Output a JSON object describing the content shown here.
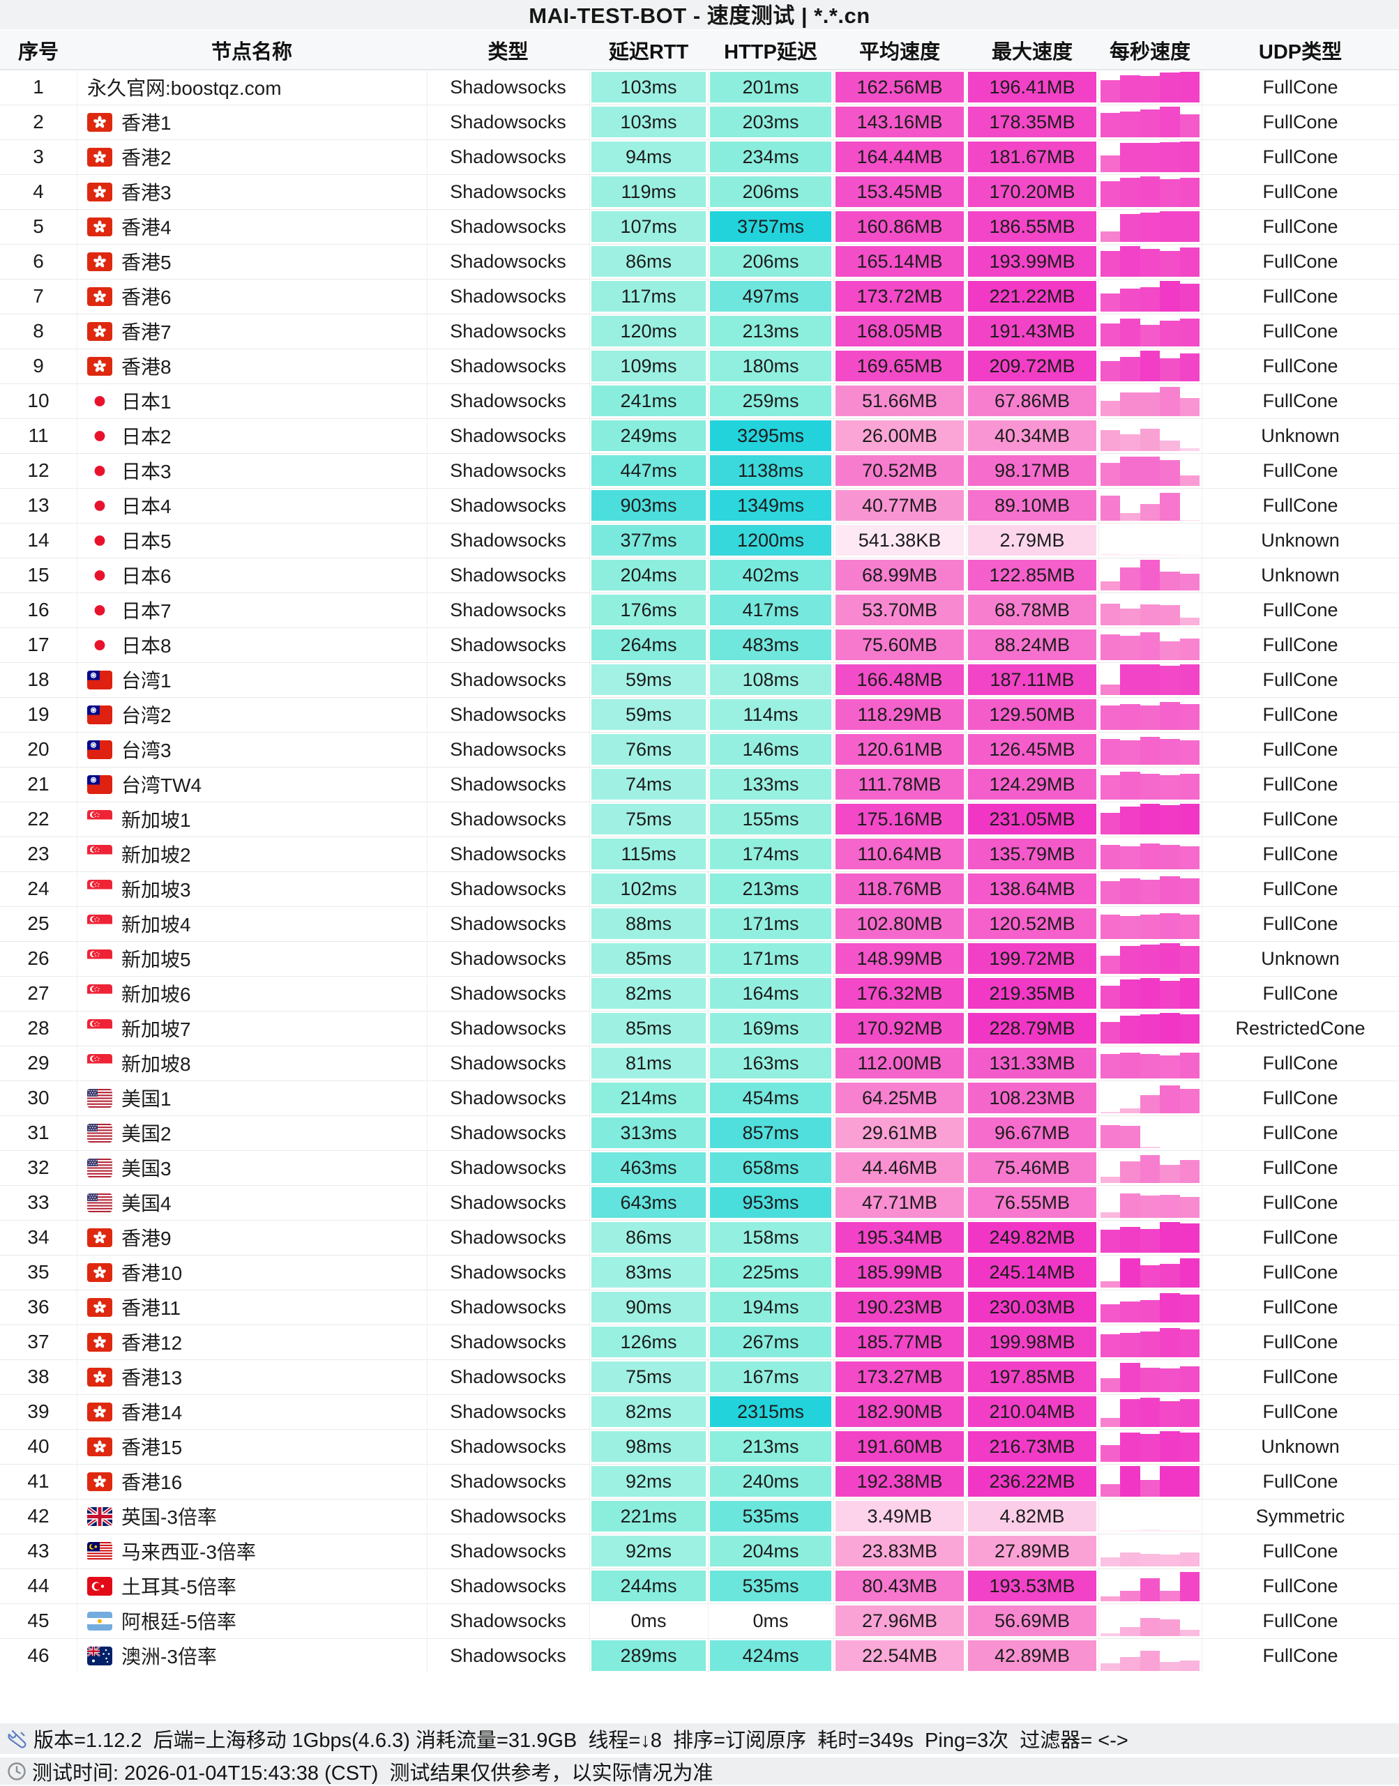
{
  "title": "MAI-TEST-BOT - 速度测试 | *.*.cn",
  "columns": [
    "序号",
    "节点名称",
    "类型",
    "延迟RTT",
    "HTTP延迟",
    "平均速度",
    "最大速度",
    "每秒速度",
    "UDP类型"
  ],
  "palette": {
    "title_bg": "#F1F2F3",
    "header_bg": "#F7F8F9",
    "footer_bg": "#EDEFF0",
    "row_border": "#E9E9E9",
    "teal_mid": "#8CEEDD",
    "teal_high": "#22D3DC",
    "pink_mid": "#FA9ED3",
    "pink_high": "#F136C5",
    "text": "#161616"
  },
  "footer": {
    "tools_icon": "wrench-icon",
    "clock_icon": "clock-icon",
    "line1": "版本=1.12.2  后端=上海移动 1Gbps(4.6.3) 消耗流量=31.9GB  线程=↓8  排序=订阅原序  耗时=349s  Ping=3次  过滤器= <->",
    "line2": "测试时间: 2026-01-04T15:43:38 (CST)  测试结果仅供参考，以实际情况为准"
  },
  "rows": [
    {
      "n": 1,
      "flag": "none",
      "name": "永久官网:boostqz.com",
      "type": "Shadowsocks",
      "rtt": "103ms",
      "http": "201ms",
      "avg": "162.56MB",
      "max": "196.41MB",
      "avg_mb": 162.56,
      "max_mb": 196.41,
      "udp": "FullCone",
      "bars": [
        0.72,
        0.88,
        0.86,
        0.97,
        1
      ]
    },
    {
      "n": 2,
      "flag": "hk",
      "name": "香港1",
      "type": "Shadowsocks",
      "rtt": "103ms",
      "http": "203ms",
      "avg": "143.16MB",
      "max": "178.35MB",
      "avg_mb": 143.16,
      "max_mb": 178.35,
      "udp": "FullCone",
      "bars": [
        0.8,
        0.85,
        0.9,
        1,
        0.75
      ]
    },
    {
      "n": 3,
      "flag": "hk",
      "name": "香港2",
      "type": "Shadowsocks",
      "rtt": "94ms",
      "http": "234ms",
      "avg": "164.44MB",
      "max": "181.67MB",
      "avg_mb": 164.44,
      "max_mb": 181.67,
      "udp": "FullCone",
      "bars": [
        0.55,
        0.95,
        0.95,
        0.98,
        1
      ]
    },
    {
      "n": 4,
      "flag": "hk",
      "name": "香港3",
      "type": "Shadowsocks",
      "rtt": "119ms",
      "http": "206ms",
      "avg": "153.45MB",
      "max": "170.20MB",
      "avg_mb": 153.45,
      "max_mb": 170.2,
      "udp": "FullCone",
      "bars": [
        0.85,
        0.95,
        1,
        0.9,
        0.95
      ]
    },
    {
      "n": 5,
      "flag": "hk",
      "name": "香港4",
      "type": "Shadowsocks",
      "rtt": "107ms",
      "http": "3757ms",
      "avg": "160.86MB",
      "max": "186.55MB",
      "avg_mb": 160.86,
      "max_mb": 186.55,
      "udp": "FullCone",
      "bars": [
        0.35,
        0.9,
        0.95,
        1,
        1
      ]
    },
    {
      "n": 6,
      "flag": "hk",
      "name": "香港5",
      "type": "Shadowsocks",
      "rtt": "86ms",
      "http": "206ms",
      "avg": "165.14MB",
      "max": "193.99MB",
      "avg_mb": 165.14,
      "max_mb": 193.99,
      "udp": "FullCone",
      "bars": [
        0.85,
        1,
        0.9,
        0.85,
        0.95
      ]
    },
    {
      "n": 7,
      "flag": "hk",
      "name": "香港6",
      "type": "Shadowsocks",
      "rtt": "117ms",
      "http": "497ms",
      "avg": "173.72MB",
      "max": "221.22MB",
      "avg_mb": 173.72,
      "max_mb": 221.22,
      "udp": "FullCone",
      "bars": [
        0.6,
        0.75,
        0.8,
        1,
        0.9
      ]
    },
    {
      "n": 8,
      "flag": "hk",
      "name": "香港7",
      "type": "Shadowsocks",
      "rtt": "120ms",
      "http": "213ms",
      "avg": "168.05MB",
      "max": "191.43MB",
      "avg_mb": 168.05,
      "max_mb": 191.43,
      "udp": "FullCone",
      "bars": [
        0.75,
        0.9,
        0.7,
        0.85,
        0.9
      ]
    },
    {
      "n": 9,
      "flag": "hk",
      "name": "香港8",
      "type": "Shadowsocks",
      "rtt": "109ms",
      "http": "180ms",
      "avg": "169.65MB",
      "max": "209.72MB",
      "avg_mb": 169.65,
      "max_mb": 209.72,
      "udp": "FullCone",
      "bars": [
        0.65,
        0.8,
        1,
        0.75,
        0.9
      ]
    },
    {
      "n": 10,
      "flag": "jp",
      "name": "日本1",
      "type": "Shadowsocks",
      "rtt": "241ms",
      "http": "259ms",
      "avg": "51.66MB",
      "max": "67.86MB",
      "avg_mb": 51.66,
      "max_mb": 67.86,
      "udp": "FullCone",
      "bars": [
        0.5,
        0.78,
        0.78,
        0.95,
        0.6
      ]
    },
    {
      "n": 11,
      "flag": "jp",
      "name": "日本2",
      "type": "Shadowsocks",
      "rtt": "249ms",
      "http": "3295ms",
      "avg": "26.00MB",
      "max": "40.34MB",
      "avg_mb": 26,
      "max_mb": 40.34,
      "udp": "Unknown",
      "bars": [
        0.68,
        0.55,
        0.72,
        0.35,
        0.08
      ]
    },
    {
      "n": 12,
      "flag": "jp",
      "name": "日本3",
      "type": "Shadowsocks",
      "rtt": "447ms",
      "http": "1138ms",
      "avg": "70.52MB",
      "max": "98.17MB",
      "avg_mb": 70.52,
      "max_mb": 98.17,
      "udp": "FullCone",
      "bars": [
        0.75,
        0.95,
        0.95,
        0.85,
        0.35
      ]
    },
    {
      "n": 13,
      "flag": "jp",
      "name": "日本4",
      "type": "Shadowsocks",
      "rtt": "903ms",
      "http": "1349ms",
      "avg": "40.77MB",
      "max": "89.10MB",
      "avg_mb": 40.77,
      "max_mb": 89.1,
      "udp": "FullCone",
      "bars": [
        0.82,
        0.25,
        0.55,
        0.9,
        0.03
      ]
    },
    {
      "n": 14,
      "flag": "jp",
      "name": "日本5",
      "type": "Shadowsocks",
      "rtt": "377ms",
      "http": "1200ms",
      "avg": "541.38KB",
      "max": "2.79MB",
      "avg_mb": 0.53,
      "max_mb": 2.79,
      "udp": "Unknown",
      "bars": [
        0.06,
        0.04,
        0.05,
        0.04,
        0.02
      ]
    },
    {
      "n": 15,
      "flag": "jp",
      "name": "日本6",
      "type": "Shadowsocks",
      "rtt": "204ms",
      "http": "402ms",
      "avg": "68.99MB",
      "max": "122.85MB",
      "avg_mb": 68.99,
      "max_mb": 122.85,
      "udp": "Unknown",
      "bars": [
        0.3,
        0.75,
        1,
        0.62,
        0.55
      ]
    },
    {
      "n": 16,
      "flag": "jp",
      "name": "日本7",
      "type": "Shadowsocks",
      "rtt": "176ms",
      "http": "417ms",
      "avg": "53.70MB",
      "max": "68.78MB",
      "avg_mb": 53.7,
      "max_mb": 68.78,
      "udp": "FullCone",
      "bars": [
        0.7,
        0.55,
        0.68,
        0.65,
        0.25
      ]
    },
    {
      "n": 17,
      "flag": "jp",
      "name": "日本8",
      "type": "Shadowsocks",
      "rtt": "264ms",
      "http": "483ms",
      "avg": "75.60MB",
      "max": "88.24MB",
      "avg_mb": 75.6,
      "max_mb": 88.24,
      "udp": "FullCone",
      "bars": [
        0.85,
        0.8,
        0.9,
        0.62,
        0.7
      ]
    },
    {
      "n": 18,
      "flag": "tw",
      "name": "台湾1",
      "type": "Shadowsocks",
      "rtt": "59ms",
      "http": "108ms",
      "avg": "166.48MB",
      "max": "187.11MB",
      "avg_mb": 166.48,
      "max_mb": 187.11,
      "udp": "FullCone",
      "bars": [
        0.35,
        1,
        1,
        0.95,
        1
      ]
    },
    {
      "n": 19,
      "flag": "tw",
      "name": "台湾2",
      "type": "Shadowsocks",
      "rtt": "59ms",
      "http": "114ms",
      "avg": "118.29MB",
      "max": "129.50MB",
      "avg_mb": 118.29,
      "max_mb": 129.5,
      "udp": "FullCone",
      "bars": [
        0.8,
        0.85,
        0.8,
        0.9,
        0.85
      ]
    },
    {
      "n": 20,
      "flag": "tw",
      "name": "台湾3",
      "type": "Shadowsocks",
      "rtt": "76ms",
      "http": "146ms",
      "avg": "120.61MB",
      "max": "126.45MB",
      "avg_mb": 120.61,
      "max_mb": 126.45,
      "udp": "FullCone",
      "bars": [
        0.85,
        0.8,
        0.9,
        0.85,
        0.8
      ]
    },
    {
      "n": 21,
      "flag": "tw",
      "name": "台湾TW4",
      "type": "Shadowsocks",
      "rtt": "74ms",
      "http": "133ms",
      "avg": "111.78MB",
      "max": "124.29MB",
      "avg_mb": 111.78,
      "max_mb": 124.29,
      "udp": "FullCone",
      "bars": [
        0.8,
        0.9,
        0.85,
        0.8,
        0.85
      ]
    },
    {
      "n": 22,
      "flag": "sg",
      "name": "新加坡1",
      "type": "Shadowsocks",
      "rtt": "75ms",
      "http": "155ms",
      "avg": "175.16MB",
      "max": "231.05MB",
      "avg_mb": 175.16,
      "max_mb": 231.05,
      "udp": "FullCone",
      "bars": [
        0.7,
        0.9,
        1,
        0.95,
        1
      ]
    },
    {
      "n": 23,
      "flag": "sg",
      "name": "新加坡2",
      "type": "Shadowsocks",
      "rtt": "115ms",
      "http": "174ms",
      "avg": "110.64MB",
      "max": "135.79MB",
      "avg_mb": 110.64,
      "max_mb": 135.79,
      "udp": "FullCone",
      "bars": [
        0.8,
        0.75,
        0.85,
        0.8,
        0.75
      ]
    },
    {
      "n": 24,
      "flag": "sg",
      "name": "新加坡3",
      "type": "Shadowsocks",
      "rtt": "102ms",
      "http": "213ms",
      "avg": "118.76MB",
      "max": "138.64MB",
      "avg_mb": 118.76,
      "max_mb": 138.64,
      "udp": "FullCone",
      "bars": [
        0.75,
        0.85,
        0.8,
        0.9,
        0.85
      ]
    },
    {
      "n": 25,
      "flag": "sg",
      "name": "新加坡4",
      "type": "Shadowsocks",
      "rtt": "88ms",
      "http": "171ms",
      "avg": "102.80MB",
      "max": "120.52MB",
      "avg_mb": 102.8,
      "max_mb": 120.52,
      "udp": "FullCone",
      "bars": [
        0.8,
        0.75,
        0.8,
        0.85,
        0.8
      ]
    },
    {
      "n": 26,
      "flag": "sg",
      "name": "新加坡5",
      "type": "Shadowsocks",
      "rtt": "85ms",
      "http": "171ms",
      "avg": "148.99MB",
      "max": "199.72MB",
      "avg_mb": 148.99,
      "max_mb": 199.72,
      "udp": "Unknown",
      "bars": [
        0.6,
        0.9,
        0.95,
        1,
        0.9
      ]
    },
    {
      "n": 27,
      "flag": "sg",
      "name": "新加坡6",
      "type": "Shadowsocks",
      "rtt": "82ms",
      "http": "164ms",
      "avg": "176.32MB",
      "max": "219.35MB",
      "avg_mb": 176.32,
      "max_mb": 219.35,
      "udp": "FullCone",
      "bars": [
        0.75,
        0.95,
        1,
        0.9,
        1
      ]
    },
    {
      "n": 28,
      "flag": "sg",
      "name": "新加坡7",
      "type": "Shadowsocks",
      "rtt": "85ms",
      "http": "169ms",
      "avg": "170.92MB",
      "max": "228.79MB",
      "avg_mb": 170.92,
      "max_mb": 228.79,
      "udp": "RestrictedCone",
      "bars": [
        0.7,
        0.9,
        0.95,
        1,
        0.95
      ]
    },
    {
      "n": 29,
      "flag": "sg",
      "name": "新加坡8",
      "type": "Shadowsocks",
      "rtt": "81ms",
      "http": "163ms",
      "avg": "112.00MB",
      "max": "131.33MB",
      "avg_mb": 112,
      "max_mb": 131.33,
      "udp": "FullCone",
      "bars": [
        0.8,
        0.85,
        0.8,
        0.75,
        0.85
      ]
    },
    {
      "n": 30,
      "flag": "us",
      "name": "美国1",
      "type": "Shadowsocks",
      "rtt": "214ms",
      "http": "454ms",
      "avg": "64.25MB",
      "max": "108.23MB",
      "avg_mb": 64.25,
      "max_mb": 108.23,
      "udp": "FullCone",
      "bars": [
        0.05,
        0.15,
        0.6,
        0.9,
        0.8
      ]
    },
    {
      "n": 31,
      "flag": "us",
      "name": "美国2",
      "type": "Shadowsocks",
      "rtt": "313ms",
      "http": "857ms",
      "avg": "29.61MB",
      "max": "96.67MB",
      "avg_mb": 29.61,
      "max_mb": 96.67,
      "udp": "FullCone",
      "bars": [
        0.75,
        0.72,
        0.05,
        0,
        0
      ]
    },
    {
      "n": 32,
      "flag": "us",
      "name": "美国3",
      "type": "Shadowsocks",
      "rtt": "463ms",
      "http": "658ms",
      "avg": "44.46MB",
      "max": "75.46MB",
      "avg_mb": 44.46,
      "max_mb": 75.46,
      "udp": "FullCone",
      "bars": [
        0.2,
        0.7,
        0.9,
        0.6,
        0.75
      ]
    },
    {
      "n": 33,
      "flag": "us",
      "name": "美国4",
      "type": "Shadowsocks",
      "rtt": "643ms",
      "http": "953ms",
      "avg": "47.71MB",
      "max": "76.55MB",
      "avg_mb": 47.71,
      "max_mb": 76.55,
      "udp": "FullCone",
      "bars": [
        0.18,
        0.8,
        0.72,
        0.75,
        0.68
      ]
    },
    {
      "n": 34,
      "flag": "hk",
      "name": "香港9",
      "type": "Shadowsocks",
      "rtt": "86ms",
      "http": "158ms",
      "avg": "195.34MB",
      "max": "249.82MB",
      "avg_mb": 195.34,
      "max_mb": 249.82,
      "udp": "FullCone",
      "bars": [
        0.75,
        0.85,
        0.78,
        1,
        0.95
      ]
    },
    {
      "n": 35,
      "flag": "hk",
      "name": "香港10",
      "type": "Shadowsocks",
      "rtt": "83ms",
      "http": "225ms",
      "avg": "185.99MB",
      "max": "245.14MB",
      "avg_mb": 185.99,
      "max_mb": 245.14,
      "udp": "FullCone",
      "bars": [
        0.2,
        0.95,
        0.72,
        0.78,
        0.95
      ]
    },
    {
      "n": 36,
      "flag": "hk",
      "name": "香港11",
      "type": "Shadowsocks",
      "rtt": "90ms",
      "http": "194ms",
      "avg": "190.23MB",
      "max": "230.03MB",
      "avg_mb": 190.23,
      "max_mb": 230.03,
      "udp": "FullCone",
      "bars": [
        0.6,
        0.68,
        0.72,
        0.95,
        0.9
      ]
    },
    {
      "n": 37,
      "flag": "hk",
      "name": "香港12",
      "type": "Shadowsocks",
      "rtt": "126ms",
      "http": "267ms",
      "avg": "185.77MB",
      "max": "199.98MB",
      "avg_mb": 185.77,
      "max_mb": 199.98,
      "udp": "FullCone",
      "bars": [
        0.75,
        0.8,
        0.85,
        0.95,
        0.9
      ]
    },
    {
      "n": 38,
      "flag": "hk",
      "name": "香港13",
      "type": "Shadowsocks",
      "rtt": "75ms",
      "http": "167ms",
      "avg": "173.27MB",
      "max": "197.85MB",
      "avg_mb": 173.27,
      "max_mb": 197.85,
      "udp": "FullCone",
      "bars": [
        0.45,
        0.95,
        0.8,
        0.78,
        0.85
      ]
    },
    {
      "n": 39,
      "flag": "hk",
      "name": "香港14",
      "type": "Shadowsocks",
      "rtt": "82ms",
      "http": "2315ms",
      "avg": "182.90MB",
      "max": "210.04MB",
      "avg_mb": 182.9,
      "max_mb": 210.04,
      "udp": "FullCone",
      "bars": [
        0.3,
        0.9,
        0.95,
        0.85,
        0.9
      ]
    },
    {
      "n": 40,
      "flag": "hk",
      "name": "香港15",
      "type": "Shadowsocks",
      "rtt": "98ms",
      "http": "213ms",
      "avg": "191.60MB",
      "max": "216.73MB",
      "avg_mb": 191.6,
      "max_mb": 216.73,
      "udp": "Unknown",
      "bars": [
        0.55,
        0.95,
        0.9,
        1,
        0.95
      ]
    },
    {
      "n": 41,
      "flag": "hk",
      "name": "香港16",
      "type": "Shadowsocks",
      "rtt": "92ms",
      "http": "240ms",
      "avg": "192.38MB",
      "max": "236.22MB",
      "avg_mb": 192.38,
      "max_mb": 236.22,
      "udp": "FullCone",
      "bars": [
        0.4,
        1,
        0.55,
        1,
        1
      ]
    },
    {
      "n": 42,
      "flag": "gb",
      "name": "英国-3倍率",
      "type": "Shadowsocks",
      "rtt": "221ms",
      "http": "535ms",
      "avg": "3.49MB",
      "max": "4.82MB",
      "avg_mb": 3.49,
      "max_mb": 4.82,
      "udp": "Symmetric",
      "bars": [
        0.03,
        0.05,
        0.06,
        0.05,
        0.04
      ]
    },
    {
      "n": 43,
      "flag": "my",
      "name": "马来西亚-3倍率",
      "type": "Shadowsocks",
      "rtt": "92ms",
      "http": "204ms",
      "avg": "23.83MB",
      "max": "27.89MB",
      "avg_mb": 23.83,
      "max_mb": 27.89,
      "udp": "FullCone",
      "bars": [
        0.3,
        0.45,
        0.4,
        0.38,
        0.45
      ]
    },
    {
      "n": 44,
      "flag": "tr",
      "name": "土耳其-5倍率",
      "type": "Shadowsocks",
      "rtt": "244ms",
      "http": "535ms",
      "avg": "80.43MB",
      "max": "193.53MB",
      "avg_mb": 80.43,
      "max_mb": 193.53,
      "udp": "FullCone",
      "bars": [
        0.15,
        0.35,
        0.75,
        0.35,
        0.95
      ]
    },
    {
      "n": 45,
      "flag": "ar",
      "name": "阿根廷-5倍率",
      "type": "Shadowsocks",
      "rtt": "0ms",
      "http": "0ms",
      "avg": "27.96MB",
      "max": "56.69MB",
      "avg_mb": 27.96,
      "max_mb": 56.69,
      "udp": "FullCone",
      "bars": [
        0.1,
        0.3,
        0.6,
        0.55,
        0.2
      ]
    },
    {
      "n": 46,
      "flag": "au",
      "name": "澳洲-3倍率",
      "type": "Shadowsocks",
      "rtt": "289ms",
      "http": "424ms",
      "avg": "22.54MB",
      "max": "42.89MB",
      "avg_mb": 22.54,
      "max_mb": 42.89,
      "udp": "FullCone",
      "bars": [
        0.25,
        0.45,
        0.65,
        0.3,
        0.35
      ]
    }
  ]
}
